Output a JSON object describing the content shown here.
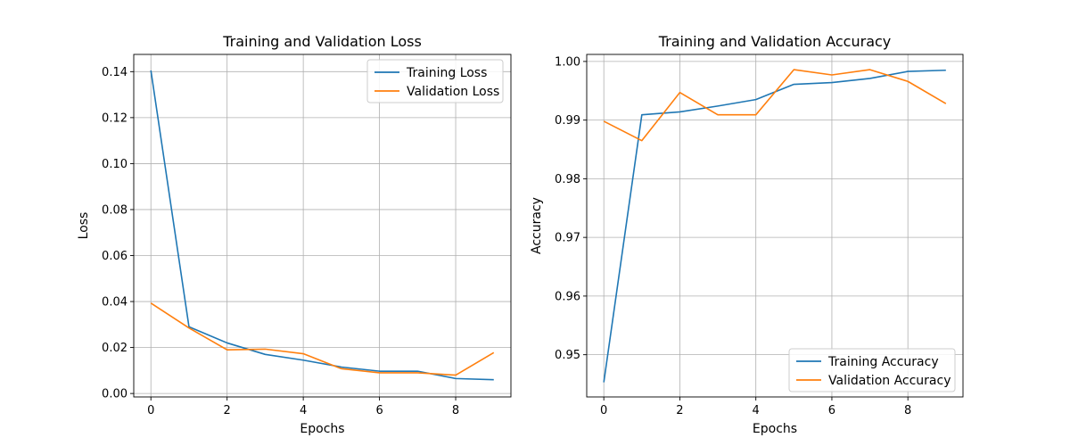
{
  "chart_data": [
    {
      "type": "line",
      "title": "Training and Validation Loss",
      "xlabel": "Epochs",
      "ylabel": "Loss",
      "xlim": [
        -0.45,
        9.45
      ],
      "ylim": [
        -0.0015,
        0.1475
      ],
      "xticks": [
        0,
        2,
        4,
        6,
        8
      ],
      "yticks": [
        0.0,
        0.02,
        0.04,
        0.06,
        0.08,
        0.1,
        0.12,
        0.14
      ],
      "ytick_labels": [
        "0.00",
        "0.02",
        "0.04",
        "0.06",
        "0.08",
        "0.10",
        "0.12",
        "0.14"
      ],
      "xtick_labels": [
        "0",
        "2",
        "4",
        "6",
        "8"
      ],
      "grid": true,
      "legend_position": "upper-right",
      "x": [
        0,
        1,
        2,
        3,
        4,
        5,
        6,
        7,
        8,
        9
      ],
      "series": [
        {
          "name": "Training Loss",
          "color": "#1f77b4",
          "values": [
            0.1405,
            0.029,
            0.022,
            0.017,
            0.0145,
            0.0115,
            0.0097,
            0.0097,
            0.0065,
            0.006
          ]
        },
        {
          "name": "Validation Loss",
          "color": "#ff7f0e",
          "values": [
            0.0393,
            0.0285,
            0.019,
            0.0193,
            0.0173,
            0.0108,
            0.009,
            0.009,
            0.008,
            0.0178
          ]
        }
      ]
    },
    {
      "type": "line",
      "title": "Training and Validation Accuracy",
      "xlabel": "Epochs",
      "ylabel": "Accuracy",
      "xlim": [
        -0.45,
        9.45
      ],
      "ylim": [
        0.9428,
        1.0012
      ],
      "xticks": [
        0,
        2,
        4,
        6,
        8
      ],
      "yticks": [
        0.95,
        0.96,
        0.97,
        0.98,
        0.99,
        1.0
      ],
      "ytick_labels": [
        "0.95",
        "0.96",
        "0.97",
        "0.98",
        "0.99",
        "1.00"
      ],
      "xtick_labels": [
        "0",
        "2",
        "4",
        "6",
        "8"
      ],
      "grid": true,
      "legend_position": "lower-right",
      "x": [
        0,
        1,
        2,
        3,
        4,
        5,
        6,
        7,
        8,
        9
      ],
      "series": [
        {
          "name": "Training Accuracy",
          "color": "#1f77b4",
          "values": [
            0.9453,
            0.9909,
            0.9914,
            0.9924,
            0.9935,
            0.9961,
            0.9964,
            0.9971,
            0.9983,
            0.9985
          ]
        },
        {
          "name": "Validation Accuracy",
          "color": "#ff7f0e",
          "values": [
            0.9898,
            0.9865,
            0.9947,
            0.9909,
            0.9909,
            0.9986,
            0.9977,
            0.9986,
            0.9966,
            0.9928
          ]
        }
      ]
    }
  ]
}
